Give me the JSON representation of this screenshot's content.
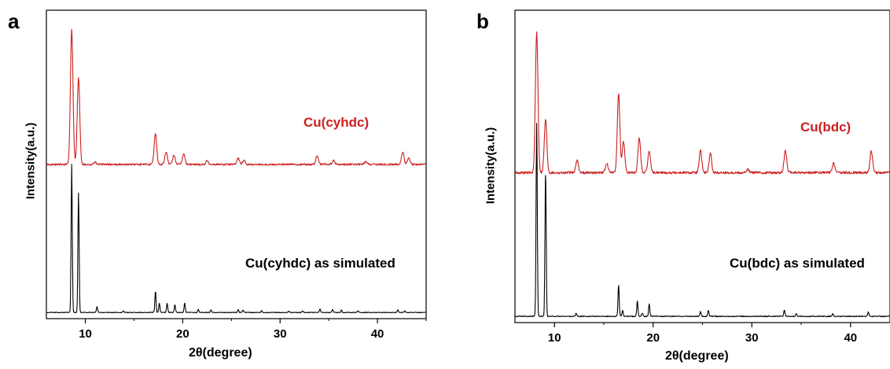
{
  "chart_data": [
    {
      "type": "line",
      "panel": "a",
      "xlabel": "2θ(degree)",
      "ylabel": "Intensity(a.u.)",
      "xlim": [
        6,
        45
      ],
      "xticks": [
        10,
        20,
        30,
        40
      ],
      "grid": false,
      "series": [
        {
          "name": "Cu(cyhdc)",
          "color": "#cc1f1f",
          "offset": 0.5,
          "peaks": [
            [
              8.6,
              0.44
            ],
            [
              9.3,
              0.28
            ],
            [
              11.0,
              0.008
            ],
            [
              17.2,
              0.1
            ],
            [
              18.3,
              0.04
            ],
            [
              19.1,
              0.03
            ],
            [
              20.1,
              0.035
            ],
            [
              22.5,
              0.012
            ],
            [
              25.7,
              0.02
            ],
            [
              26.3,
              0.012
            ],
            [
              33.8,
              0.028
            ],
            [
              35.5,
              0.012
            ],
            [
              38.8,
              0.008
            ],
            [
              42.6,
              0.04
            ],
            [
              43.2,
              0.02
            ]
          ]
        },
        {
          "name": "Cu(cyhdc) as simulated",
          "color": "#000000",
          "offset": 0.02,
          "peaks": [
            [
              8.6,
              0.48
            ],
            [
              9.3,
              0.39
            ],
            [
              11.2,
              0.02
            ],
            [
              13.9,
              0.005
            ],
            [
              17.2,
              0.07
            ],
            [
              17.6,
              0.03
            ],
            [
              18.4,
              0.03
            ],
            [
              19.2,
              0.025
            ],
            [
              20.2,
              0.03
            ],
            [
              21.6,
              0.01
            ],
            [
              22.9,
              0.008
            ],
            [
              25.7,
              0.01
            ],
            [
              26.2,
              0.008
            ],
            [
              28.1,
              0.006
            ],
            [
              30.9,
              0.005
            ],
            [
              32.3,
              0.005
            ],
            [
              34.1,
              0.012
            ],
            [
              35.4,
              0.01
            ],
            [
              36.3,
              0.008
            ],
            [
              38.0,
              0.006
            ],
            [
              42.1,
              0.008
            ],
            [
              42.8,
              0.006
            ]
          ]
        }
      ]
    },
    {
      "type": "line",
      "panel": "b",
      "xlabel": "2θ(degree)",
      "ylabel": "Intensity(a.u.)",
      "xlim": [
        6,
        44
      ],
      "xticks": [
        10,
        20,
        30,
        40
      ],
      "grid": false,
      "series": [
        {
          "name": "Cu(bdc)",
          "color": "#cc1f1f",
          "offset": 0.48,
          "peaks": [
            [
              8.2,
              0.45
            ],
            [
              9.1,
              0.17
            ],
            [
              12.3,
              0.04
            ],
            [
              15.3,
              0.03
            ],
            [
              16.5,
              0.25
            ],
            [
              17.0,
              0.1
            ],
            [
              18.6,
              0.11
            ],
            [
              19.6,
              0.07
            ],
            [
              24.8,
              0.07
            ],
            [
              25.8,
              0.06
            ],
            [
              29.6,
              0.01
            ],
            [
              33.4,
              0.07
            ],
            [
              38.3,
              0.03
            ],
            [
              42.1,
              0.07
            ]
          ]
        },
        {
          "name": "Cu(bdc) as simulated",
          "color": "#000000",
          "offset": 0.02,
          "peaks": [
            [
              8.2,
              0.62
            ],
            [
              9.1,
              0.47
            ],
            [
              12.2,
              0.01
            ],
            [
              16.5,
              0.1
            ],
            [
              16.9,
              0.02
            ],
            [
              18.4,
              0.05
            ],
            [
              18.9,
              0.01
            ],
            [
              19.6,
              0.04
            ],
            [
              24.8,
              0.015
            ],
            [
              25.6,
              0.02
            ],
            [
              33.3,
              0.02
            ],
            [
              34.5,
              0.008
            ],
            [
              38.2,
              0.008
            ],
            [
              41.8,
              0.015
            ]
          ]
        }
      ]
    }
  ],
  "panels": {
    "a": {
      "letter": "a",
      "series_labels": [
        "Cu(cyhdc)",
        "Cu(cyhdc) as simulated"
      ]
    },
    "b": {
      "letter": "b",
      "series_labels": [
        "Cu(bdc)",
        "Cu(bdc) as simulated"
      ]
    }
  }
}
